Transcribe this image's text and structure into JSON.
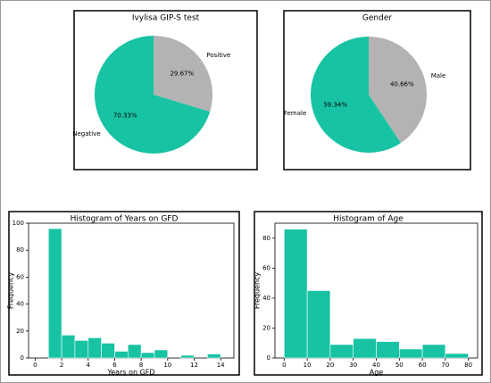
{
  "chart_data": [
    {
      "type": "pie",
      "title": "Ivylisa GIP-S test",
      "categories": [
        "Positive",
        "Negative"
      ],
      "values": [
        29.67,
        70.33
      ],
      "value_labels": [
        "29.67%",
        "70.33%"
      ],
      "colors": [
        "#b3b3b3",
        "#17c3a3"
      ]
    },
    {
      "type": "pie",
      "title": "Gender",
      "categories": [
        "Male",
        "Female"
      ],
      "values": [
        40.66,
        59.34
      ],
      "value_labels": [
        "40.66%",
        "59.34%"
      ],
      "colors": [
        "#b3b3b3",
        "#17c3a3"
      ]
    },
    {
      "type": "histogram",
      "title": "Histogram of Years on GFD",
      "xlabel": "Years on GFD",
      "ylabel": "Frequency",
      "color": "#17c3a3",
      "bins": [
        1,
        2,
        3,
        4,
        5,
        6,
        7,
        8,
        9,
        10,
        11,
        12,
        13,
        14
      ],
      "counts": [
        96,
        17,
        13,
        15,
        11,
        5,
        10,
        4,
        6,
        0,
        2,
        0,
        3
      ],
      "xlim": [
        -0.5,
        15
      ],
      "xticks": [
        0,
        2,
        4,
        6,
        8,
        10,
        12,
        14
      ],
      "ylim": [
        0,
        100
      ],
      "yticks": [
        0,
        20,
        40,
        60,
        80,
        100
      ]
    },
    {
      "type": "histogram",
      "title": "Histogram of Age",
      "xlabel": "Age",
      "ylabel": "Frequency",
      "color": "#17c3a3",
      "bins": [
        0,
        10,
        20,
        30,
        40,
        50,
        60,
        70,
        80
      ],
      "counts": [
        86,
        45,
        9,
        13,
        11,
        6,
        9,
        3
      ],
      "xlim": [
        -4,
        84
      ],
      "xticks": [
        0,
        10,
        20,
        30,
        40,
        50,
        60,
        70,
        80
      ],
      "ylim": [
        0,
        90
      ],
      "yticks": [
        0,
        20,
        40,
        60,
        80
      ]
    }
  ]
}
